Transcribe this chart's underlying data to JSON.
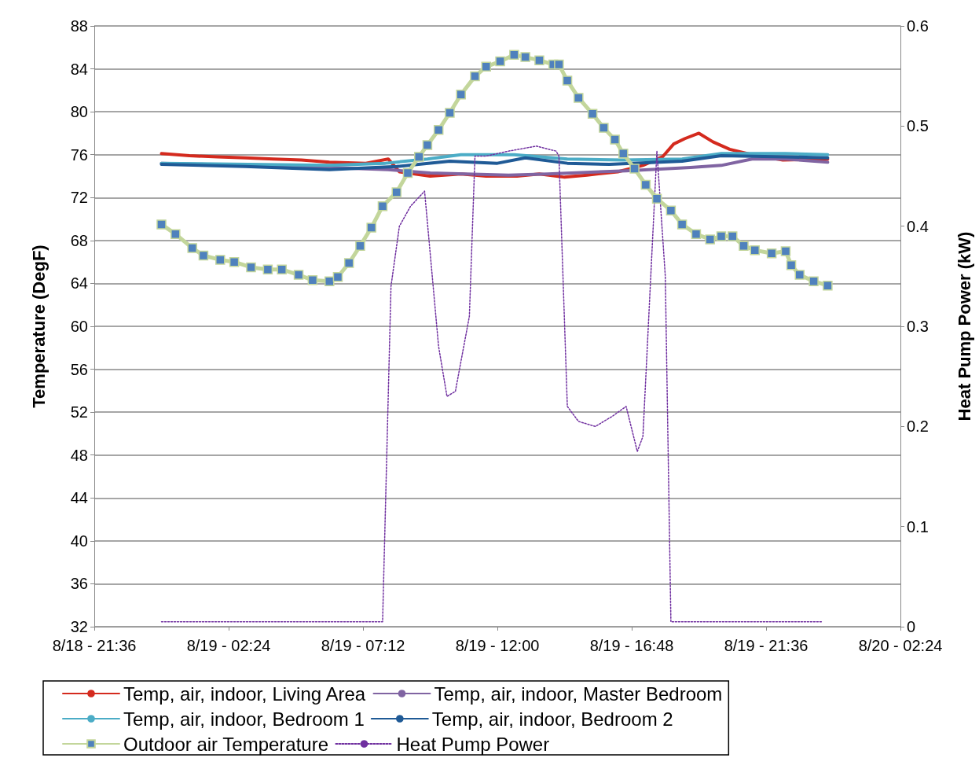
{
  "chart_data": {
    "type": "line",
    "ylabel": "Temperature (DegF)",
    "y2label": "Heat Pump Power (kW)",
    "xlim": [
      "--08-18T21:36",
      "--08-20T02:24"
    ],
    "xticks": [
      {
        "value": "--08-18T21:36",
        "label": "8/18 - 21:36"
      },
      {
        "value": "--08-19T02:24",
        "label": "8/19 - 02:24"
      },
      {
        "value": "--08-19T07:12",
        "label": "8/19 - 07:12"
      },
      {
        "value": "--08-19T12:00",
        "label": "8/19 - 12:00"
      },
      {
        "value": "--08-19T16:48",
        "label": "8/19 - 16:48"
      },
      {
        "value": "--08-19T21:36",
        "label": "8/19 - 21:36"
      },
      {
        "value": "--08-20T02:24",
        "label": "8/20 - 02:24"
      }
    ],
    "ylim": [
      32,
      88
    ],
    "yticks": [
      32,
      36,
      40,
      44,
      48,
      52,
      56,
      60,
      64,
      68,
      72,
      76,
      80,
      84,
      88
    ],
    "y2lim": [
      0,
      0.6
    ],
    "y2ticks": [
      0,
      0.1,
      0.2,
      0.3,
      0.4,
      0.5,
      0.6
    ],
    "grid": "y",
    "legend": "bottom",
    "marker": "none",
    "line_style": "solid",
    "series": [
      {
        "name": "Temp, air, indoor, Living Area",
        "color": "#d42a1e",
        "x": [
          "--08-19T00:00",
          "--08-19T01:00",
          "--08-19T02:00",
          "--08-19T03:00",
          "--08-19T04:00",
          "--08-19T05:00",
          "--08-19T06:00",
          "--08-19T07:18",
          "--08-19T08:06",
          "--08-19T08:30",
          "--08-19T09:36",
          "--08-19T10:42",
          "--08-19T11:36",
          "--08-19T12:42",
          "--08-19T13:30",
          "--08-19T14:24",
          "--08-19T15:12",
          "--08-19T16:18",
          "--08-19T17:12",
          "--08-19T17:54",
          "--08-19T18:18",
          "--08-19T18:42",
          "--08-19T19:12",
          "--08-19T19:42",
          "--08-19T20:18",
          "--08-19T21:06",
          "--08-19T22:12",
          "--08-19T23:48"
        ],
        "values": [
          76.1,
          75.9,
          75.8,
          75.7,
          75.6,
          75.5,
          75.3,
          75.2,
          75.6,
          74.4,
          74.0,
          74.2,
          74.0,
          74.0,
          74.2,
          73.9,
          74.1,
          74.4,
          75.0,
          75.8,
          77.0,
          77.5,
          78.0,
          77.2,
          76.5,
          76.0,
          75.5,
          75.6
        ]
      },
      {
        "name": "Temp, air, indoor, Master Bedroom",
        "color": "#8064a2",
        "x": [
          "--08-19T00:00",
          "--08-19T03:00",
          "--08-19T06:00",
          "--08-19T08:06",
          "--08-19T09:36",
          "--08-19T12:24",
          "--08-19T13:48",
          "--08-19T16:36",
          "--08-19T18:54",
          "--08-19T20:00",
          "--08-19T21:06",
          "--08-19T22:18",
          "--08-19T23:48"
        ],
        "values": [
          75.2,
          75.0,
          74.8,
          74.6,
          74.3,
          74.1,
          74.2,
          74.5,
          74.8,
          75.0,
          75.6,
          75.6,
          75.3
        ]
      },
      {
        "name": "Temp, air, indoor, Bedroom 1",
        "color": "#4bacc6",
        "x": [
          "--08-19T00:00",
          "--08-19T06:00",
          "--08-19T08:00",
          "--08-19T09:30",
          "--08-19T10:42",
          "--08-19T12:36",
          "--08-19T14:30",
          "--08-19T16:30",
          "--08-19T18:36",
          "--08-19T20:00",
          "--08-19T22:18",
          "--08-19T23:48"
        ],
        "values": [
          75.2,
          75.0,
          75.2,
          75.6,
          76.0,
          76.0,
          75.6,
          75.5,
          75.6,
          76.1,
          76.1,
          76.0
        ]
      },
      {
        "name": "Temp, air, indoor, Bedroom 2",
        "color": "#1f5a96",
        "x": [
          "--08-19T00:00",
          "--08-19T03:00",
          "--08-19T06:00",
          "--08-19T08:24",
          "--08-19T10:18",
          "--08-19T12:00",
          "--08-19T13:00",
          "--08-19T14:30",
          "--08-19T16:00",
          "--08-19T18:36",
          "--08-19T20:00",
          "--08-19T22:18",
          "--08-19T23:48"
        ],
        "values": [
          75.1,
          74.9,
          74.6,
          74.9,
          75.4,
          75.2,
          75.7,
          75.2,
          75.1,
          75.4,
          75.9,
          75.8,
          75.7
        ]
      },
      {
        "name": "Outdoor air Temperature",
        "color": "#4f81bd",
        "marker": "square",
        "x": [
          "--08-19T00:00",
          "--08-19T00:30",
          "--08-19T01:06",
          "--08-19T01:30",
          "--08-19T02:06",
          "--08-19T02:36",
          "--08-19T03:12",
          "--08-19T03:48",
          "--08-19T04:18",
          "--08-19T04:54",
          "--08-19T05:24",
          "--08-19T06:00",
          "--08-19T06:18",
          "--08-19T06:42",
          "--08-19T07:06",
          "--08-19T07:30",
          "--08-19T07:54",
          "--08-19T08:24",
          "--08-19T08:48",
          "--08-19T09:12",
          "--08-19T09:30",
          "--08-19T09:54",
          "--08-19T10:18",
          "--08-19T10:42",
          "--08-19T11:12",
          "--08-19T11:36",
          "--08-19T12:06",
          "--08-19T12:36",
          "--08-19T13:00",
          "--08-19T13:30",
          "--08-19T14:00",
          "--08-19T14:12",
          "--08-19T14:30",
          "--08-19T14:54",
          "--08-19T15:24",
          "--08-19T15:48",
          "--08-19T16:12",
          "--08-19T16:30",
          "--08-19T16:54",
          "--08-19T17:18",
          "--08-19T17:42",
          "--08-19T18:12",
          "--08-19T18:36",
          "--08-19T19:06",
          "--08-19T19:36",
          "--08-19T20:00",
          "--08-19T20:24",
          "--08-19T20:48",
          "--08-19T21:12",
          "--08-19T21:48",
          "--08-19T22:18",
          "--08-19T22:30",
          "--08-19T22:48",
          "--08-19T23:18",
          "--08-19T23:48"
        ],
        "values": [
          69.5,
          68.6,
          67.3,
          66.6,
          66.2,
          66.0,
          65.5,
          65.3,
          65.3,
          64.8,
          64.3,
          64.2,
          64.6,
          65.9,
          67.5,
          69.2,
          71.2,
          72.5,
          74.3,
          75.8,
          76.9,
          78.3,
          79.9,
          81.6,
          83.3,
          84.2,
          84.7,
          85.3,
          85.1,
          84.8,
          84.4,
          84.4,
          82.9,
          81.3,
          79.8,
          78.5,
          77.4,
          76.1,
          74.7,
          73.2,
          71.9,
          70.8,
          69.5,
          68.6,
          68.1,
          68.4,
          68.4,
          67.5,
          67.1,
          66.8,
          67.0,
          65.7,
          64.8,
          64.2,
          63.8
        ]
      },
      {
        "name": "Heat Pump Power",
        "color": "#7030a0",
        "axis": "y2",
        "line_style": "dotted",
        "x": [
          "--08-19T00:00",
          "--08-19T02:00",
          "--08-19T04:00",
          "--08-19T06:00",
          "--08-19T07:54",
          "--08-19T08:12",
          "--08-19T08:30",
          "--08-19T08:54",
          "--08-19T09:24",
          "--08-19T09:54",
          "--08-19T10:12",
          "--08-19T10:30",
          "--08-19T11:00",
          "--08-19T11:12",
          "--08-19T11:36",
          "--08-19T12:24",
          "--08-19T13:24",
          "--08-19T14:06",
          "--08-19T14:12",
          "--08-19T14:30",
          "--08-19T14:54",
          "--08-19T15:30",
          "--08-19T16:06",
          "--08-19T16:36",
          "--08-19T17:00",
          "--08-19T17:12",
          "--08-19T17:42",
          "--08-19T18:00",
          "--08-19T18:12",
          "--08-19T20:00",
          "--08-19T22:00",
          "--08-19T23:36"
        ],
        "values": [
          0.005,
          0.005,
          0.005,
          0.005,
          0.005,
          0.34,
          0.4,
          0.42,
          0.435,
          0.28,
          0.23,
          0.235,
          0.31,
          0.47,
          0.47,
          0.475,
          0.48,
          0.475,
          0.47,
          0.22,
          0.205,
          0.2,
          0.21,
          0.22,
          0.175,
          0.19,
          0.475,
          0.35,
          0.005,
          0.005,
          0.005,
          0.005
        ]
      }
    ]
  }
}
